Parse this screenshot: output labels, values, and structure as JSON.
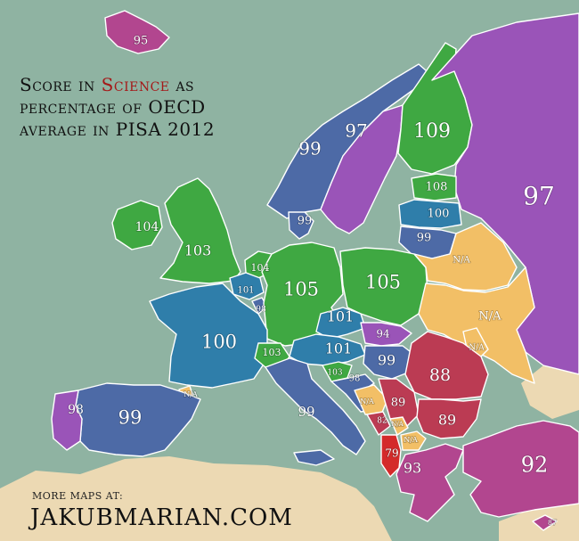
{
  "title": {
    "line1_before": "Score in ",
    "line1_accent": "Science",
    "line1_after": " as",
    "line2": "percentage of OECD",
    "line3": "average in PISA 2012"
  },
  "footer": {
    "small": "MORE MAPS AT:",
    "big": "JAKUBMARIAN.COM"
  },
  "colors": {
    "sea": "#8fb3a2",
    "land_outside": "#ecd9b3",
    "green": "#3fa842",
    "blue": "#2f7eaa",
    "slate": "#4d6aa6",
    "purple": "#9a54b8",
    "magenta": "#b2468f",
    "red": "#bb3b53",
    "bright_red": "#d42a2a",
    "na": "#f2bf66",
    "accent_text": "#a51818"
  },
  "regions": [
    {
      "name": "iceland",
      "label": "95",
      "color": "magenta"
    },
    {
      "name": "norway",
      "label": "99",
      "color": "slate"
    },
    {
      "name": "sweden",
      "label": "97",
      "color": "purple"
    },
    {
      "name": "finland",
      "label": "109",
      "color": "green"
    },
    {
      "name": "russia",
      "label": "97",
      "color": "purple"
    },
    {
      "name": "estonia",
      "label": "108",
      "color": "green"
    },
    {
      "name": "latvia",
      "label": "100",
      "color": "blue"
    },
    {
      "name": "lithuania",
      "label": "99",
      "color": "slate"
    },
    {
      "name": "denmark",
      "label": "99",
      "color": "slate"
    },
    {
      "name": "ireland",
      "label": "104",
      "color": "green"
    },
    {
      "name": "united-kingdom",
      "label": "103",
      "color": "green"
    },
    {
      "name": "netherlands",
      "label": "104",
      "color": "green"
    },
    {
      "name": "belgium",
      "label": "101",
      "color": "blue"
    },
    {
      "name": "luxembourg",
      "label": "98",
      "color": "slate"
    },
    {
      "name": "germany",
      "label": "105",
      "color": "green"
    },
    {
      "name": "poland",
      "label": "105",
      "color": "green"
    },
    {
      "name": "belarus",
      "label": "N/A",
      "color": "na"
    },
    {
      "name": "ukraine",
      "label": "N/A",
      "color": "na"
    },
    {
      "name": "moldova",
      "label": "N/A",
      "color": "na"
    },
    {
      "name": "france",
      "label": "100",
      "color": "blue"
    },
    {
      "name": "czech-republic",
      "label": "101",
      "color": "blue"
    },
    {
      "name": "slovakia",
      "label": "94",
      "color": "purple"
    },
    {
      "name": "austria",
      "label": "101",
      "color": "blue"
    },
    {
      "name": "switzerland",
      "label": "103",
      "color": "green"
    },
    {
      "name": "hungary",
      "label": "99",
      "color": "slate"
    },
    {
      "name": "slovenia",
      "label": "103",
      "color": "green"
    },
    {
      "name": "croatia",
      "label": "98",
      "color": "slate"
    },
    {
      "name": "romania",
      "label": "88",
      "color": "red"
    },
    {
      "name": "bosnia",
      "label": "N/A",
      "color": "na"
    },
    {
      "name": "serbia",
      "label": "89",
      "color": "red"
    },
    {
      "name": "bulgaria",
      "label": "89",
      "color": "red"
    },
    {
      "name": "montenegro",
      "label": "82",
      "color": "red"
    },
    {
      "name": "kosovo",
      "label": "N/A",
      "color": "na"
    },
    {
      "name": "north-macedonia",
      "label": "N/A",
      "color": "na"
    },
    {
      "name": "albania",
      "label": "79",
      "color": "bright_red"
    },
    {
      "name": "greece",
      "label": "93",
      "color": "magenta"
    },
    {
      "name": "turkey",
      "label": "92",
      "color": "magenta"
    },
    {
      "name": "cyprus",
      "label": "87",
      "color": "magenta"
    },
    {
      "name": "andorra",
      "label": "N/A",
      "color": "na"
    },
    {
      "name": "spain",
      "label": "99",
      "color": "slate"
    },
    {
      "name": "portugal",
      "label": "98",
      "color": "purple"
    },
    {
      "name": "italy",
      "label": "99",
      "color": "slate"
    }
  ]
}
